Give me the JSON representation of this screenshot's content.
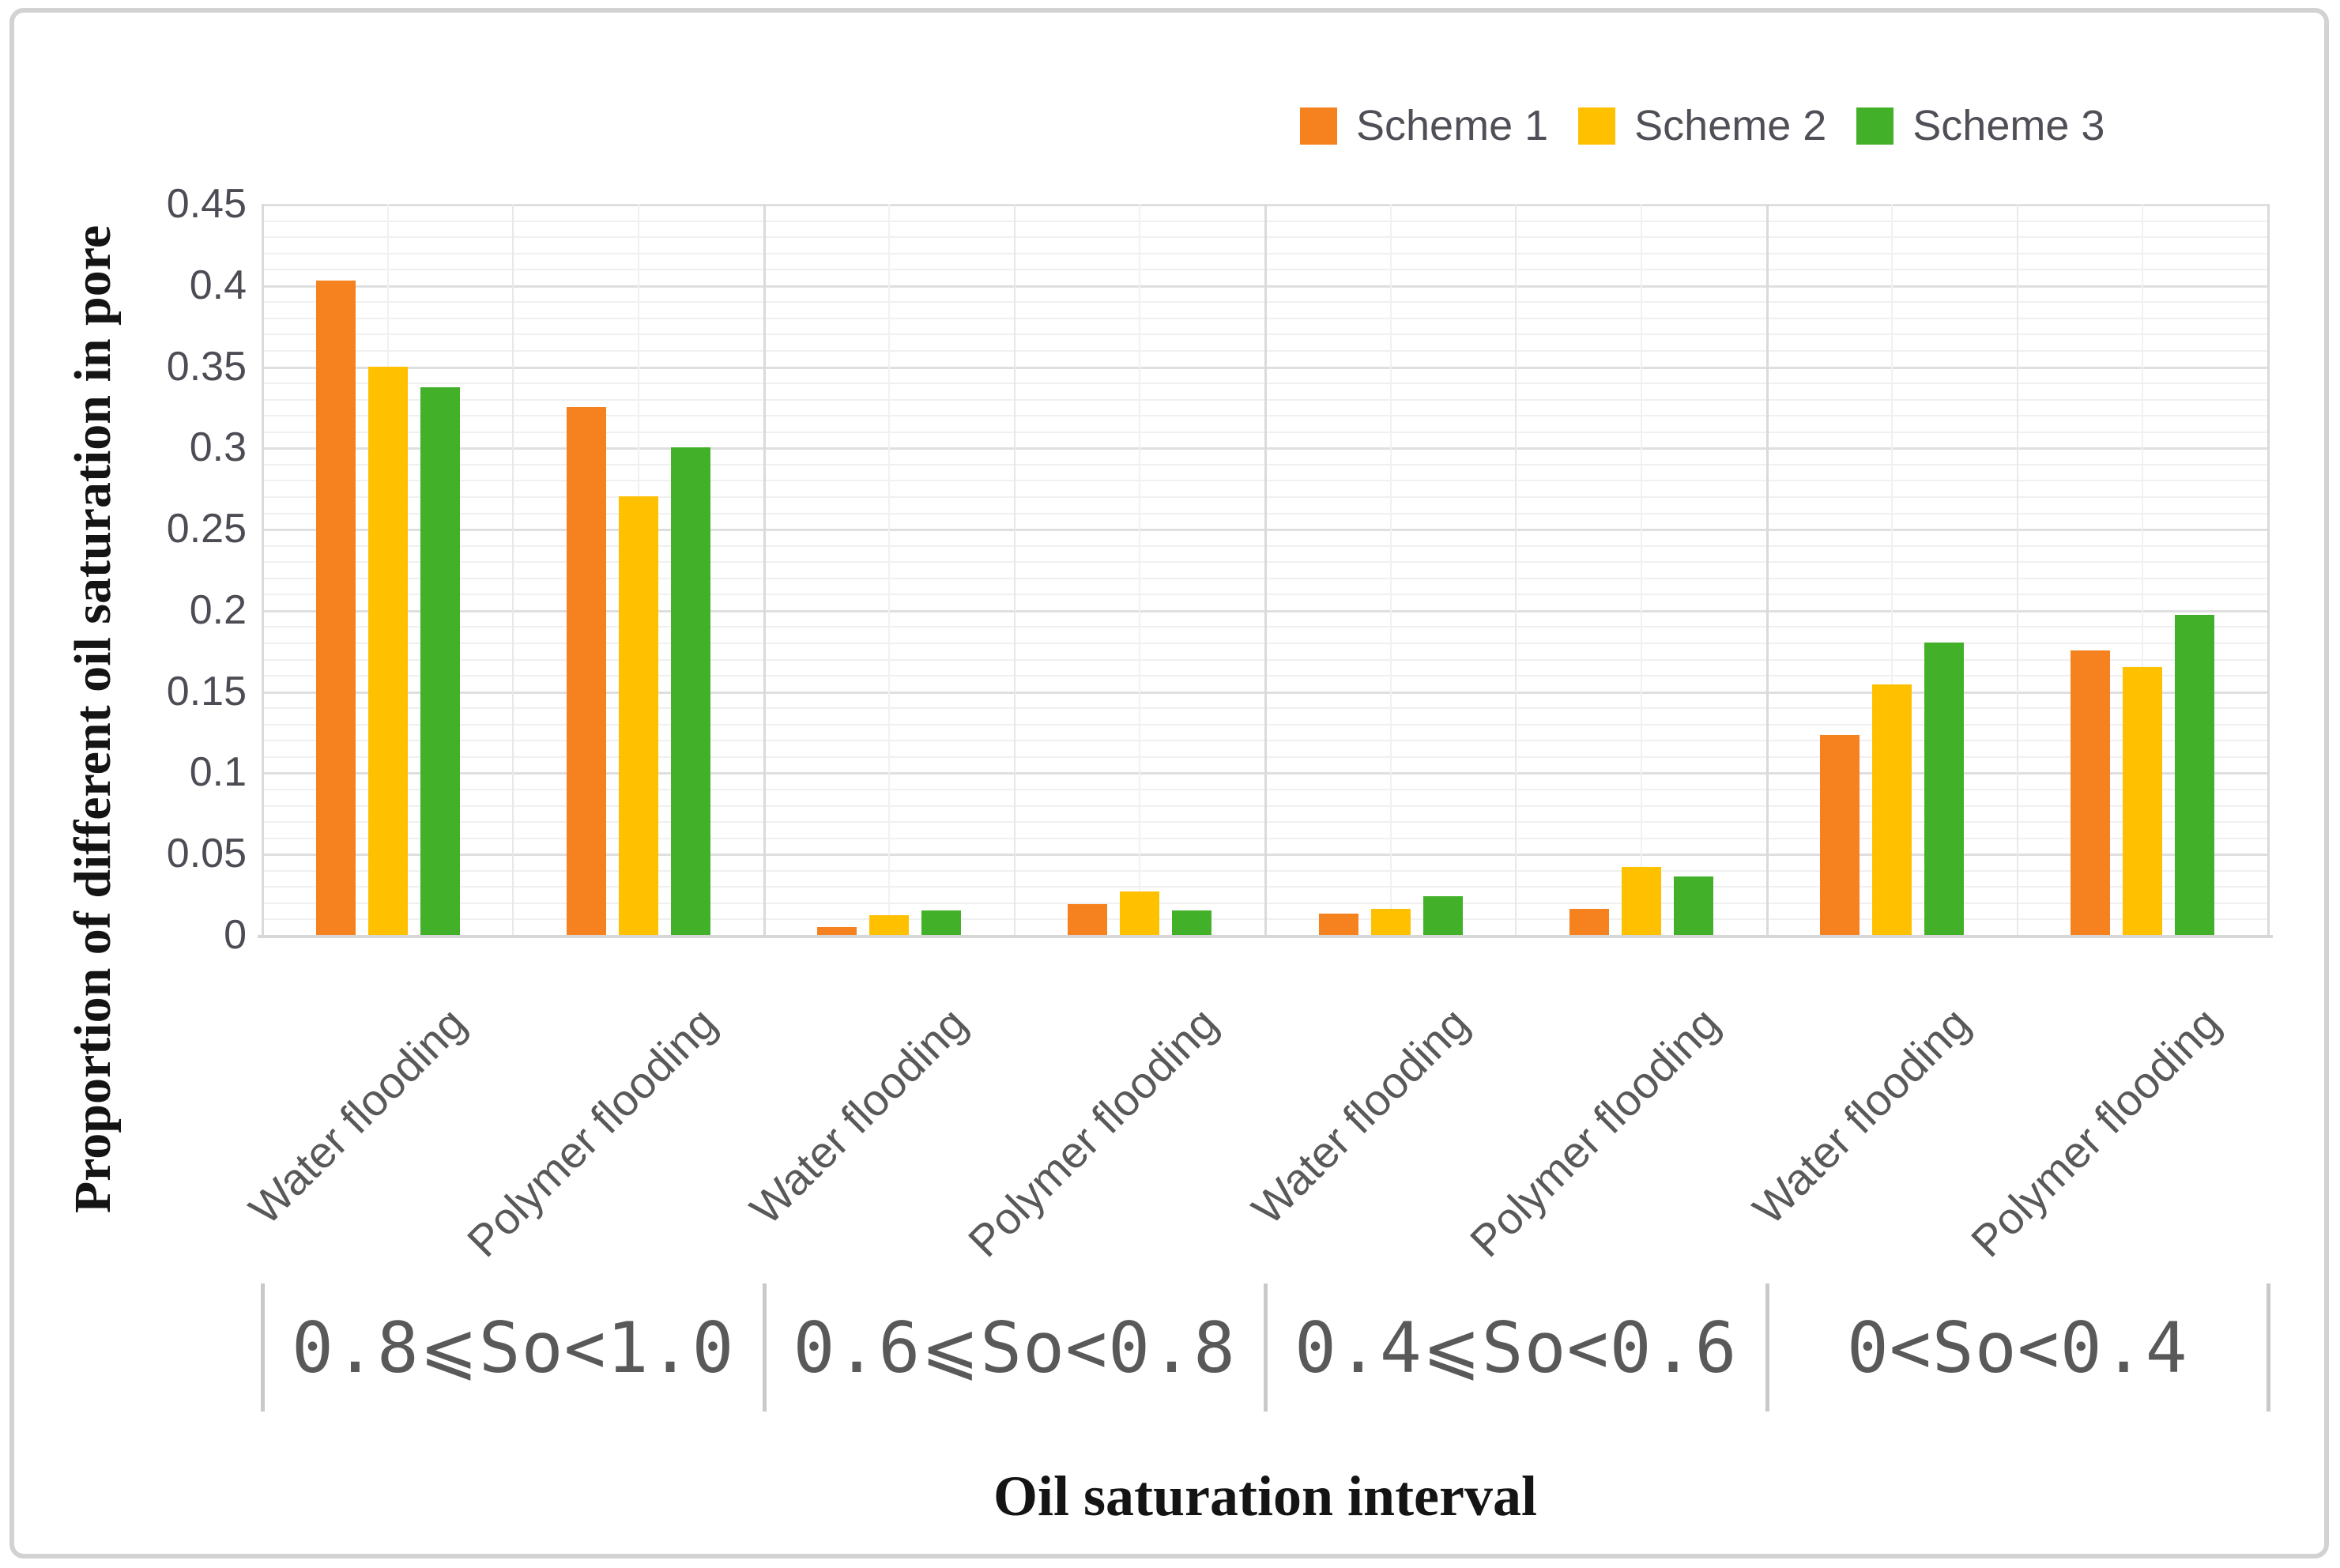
{
  "legend": {
    "items": [
      {
        "label": "Scheme 1",
        "color": "#F5821F"
      },
      {
        "label": "Scheme 2",
        "color": "#FFC000"
      },
      {
        "label": "Scheme 3",
        "color": "#43B02A"
      }
    ]
  },
  "axes": {
    "y_title": "Proportion of different oil saturation in pore",
    "x_title": "Oil saturation interval",
    "y_tick_labels": [
      "0.45",
      "0.4",
      "0.35",
      "0.3",
      "0.25",
      "0.2",
      "0.15",
      "0.1",
      "0.05",
      "0"
    ]
  },
  "chart_data": {
    "type": "bar",
    "title": "",
    "xlabel": "Oil saturation interval",
    "ylabel": "Proportion of different oil saturation in pore",
    "ylim": [
      0,
      0.45
    ],
    "y_major_step": 0.05,
    "y_minor_step": 0.01,
    "grid": "on",
    "legend_position": "top-right",
    "interval_groups": [
      "0.8⩽So<1.0",
      "0.6⩽So<0.8",
      "0.4⩽So<0.6",
      "0<So<0.4"
    ],
    "categories": [
      "Water flooding",
      "Polymer flooding",
      "Water flooding",
      "Polymer flooding",
      "Water flooding",
      "Polymer flooding",
      "Water flooding",
      "Polymer flooding"
    ],
    "series": [
      {
        "name": "Scheme 1",
        "color": "#F5821F",
        "values": [
          0.403,
          0.325,
          0.005,
          0.019,
          0.013,
          0.016,
          0.123,
          0.175
        ]
      },
      {
        "name": "Scheme 2",
        "color": "#FFC000",
        "values": [
          0.35,
          0.27,
          0.012,
          0.027,
          0.016,
          0.042,
          0.154,
          0.165
        ]
      },
      {
        "name": "Scheme 3",
        "color": "#43B02A",
        "values": [
          0.337,
          0.3,
          0.015,
          0.015,
          0.024,
          0.036,
          0.18,
          0.197
        ]
      }
    ]
  }
}
